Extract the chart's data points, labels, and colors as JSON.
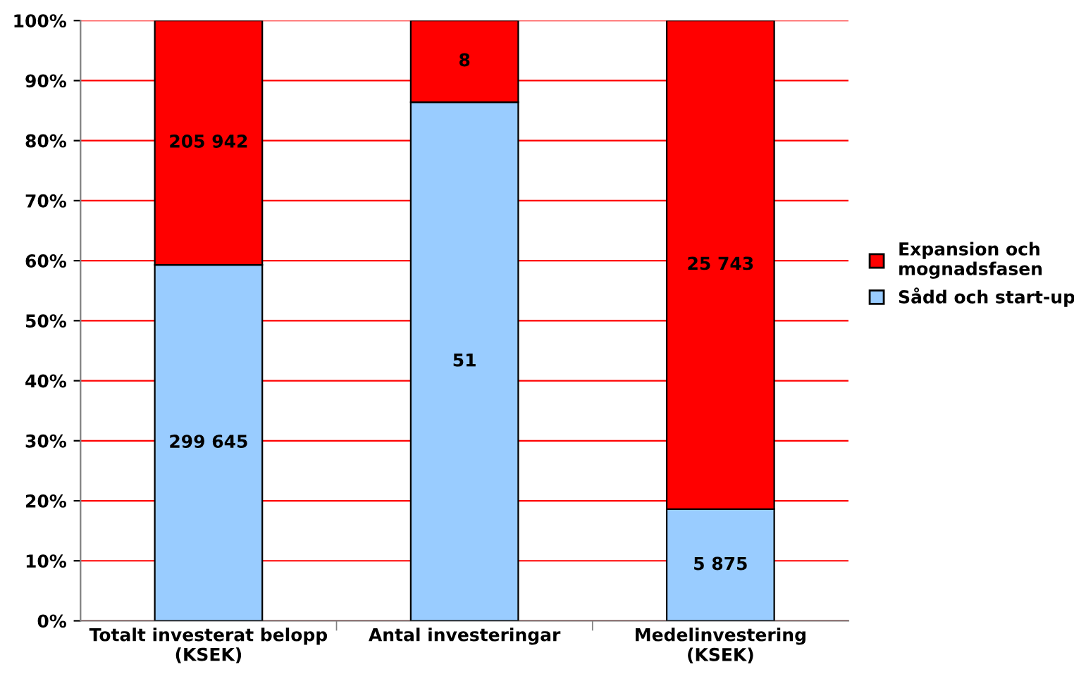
{
  "chart_data": {
    "type": "bar",
    "stacked": true,
    "categories": [
      "Totalt investerat belopp\n(KSEK)",
      "Antal investeringar",
      "Medelinvestering\n(KSEK)"
    ],
    "series": [
      {
        "name": "Sådd och start-up",
        "color": "#99ccff",
        "values": [
          59.3,
          86.4,
          18.6
        ]
      },
      {
        "name": "Expansion och\nmognadsfasen",
        "color": "#ff0000",
        "values": [
          40.7,
          13.6,
          81.4
        ]
      }
    ],
    "annotations": [
      "299 645",
      "51",
      "5 875",
      "205 942",
      "8",
      "25 743"
    ],
    "ylim": [
      0,
      100
    ],
    "yticks": [
      {
        "value": 0,
        "label": "0%"
      },
      {
        "value": 10,
        "label": "10%"
      },
      {
        "value": 20,
        "label": "20%"
      },
      {
        "value": 30,
        "label": "30%"
      },
      {
        "value": 40,
        "label": "40%"
      },
      {
        "value": 50,
        "label": "50%"
      },
      {
        "value": 60,
        "label": "60%"
      },
      {
        "value": 70,
        "label": "70%"
      },
      {
        "value": 80,
        "label": "80%"
      },
      {
        "value": 90,
        "label": "90%"
      },
      {
        "value": 100,
        "label": "100%"
      }
    ],
    "grid": "y",
    "legend": "right"
  }
}
